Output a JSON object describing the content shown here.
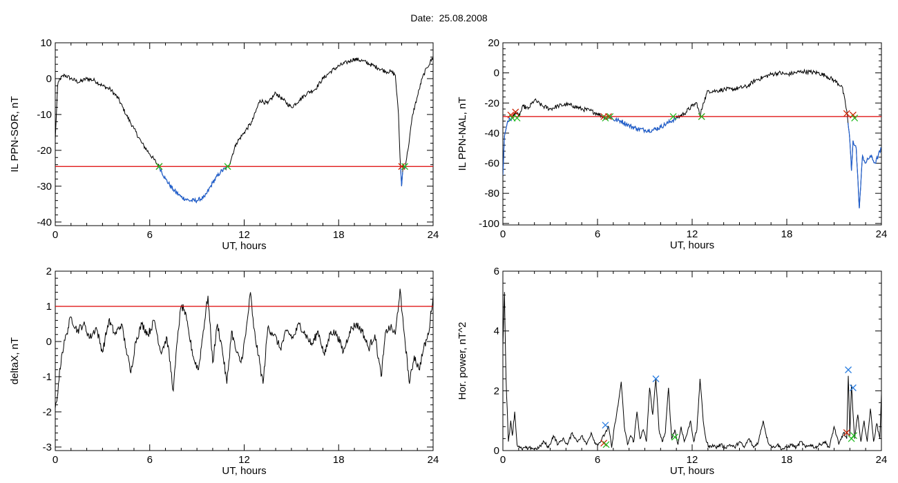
{
  "title": "Date:  25.08.2008",
  "colors": {
    "line": "#000000",
    "threshold": "#dd0000",
    "below": "#1f5fd0",
    "marker_start": "#cc2200",
    "marker_end": "#22bb22",
    "marker_peak": "#2a7de0"
  },
  "chart_data": [
    {
      "type": "line",
      "xlabel": "UT, hours",
      "ylabel": "IL PPN-SOR, nT",
      "xlim": [
        0,
        24
      ],
      "ylim": [
        -41,
        10
      ],
      "xticks": [
        0,
        6,
        12,
        18,
        24
      ],
      "yticks": [
        -40,
        -30,
        -20,
        -10,
        0,
        10
      ],
      "threshold": -24.5,
      "noise": 0.6,
      "x": [
        0,
        0.15,
        0.3,
        0.6,
        1,
        1.5,
        2,
        2.5,
        3,
        3.5,
        4,
        4.5,
        5,
        5.5,
        6,
        6.6,
        7,
        7.5,
        8,
        8.5,
        9,
        9.5,
        10,
        10.5,
        11,
        11.5,
        12,
        12.5,
        13,
        13.5,
        14,
        14.5,
        15,
        15.5,
        16,
        16.5,
        17,
        17.5,
        18,
        18.5,
        19,
        19.5,
        20,
        20.5,
        21,
        21.3,
        21.6,
        21.8,
        21.9,
        22.0,
        22.1,
        22.2,
        22.4,
        22.7,
        23,
        23.3,
        23.6,
        24
      ],
      "y": [
        -17,
        -2,
        0,
        1,
        0,
        -1,
        0,
        -0.5,
        -2,
        -3,
        -5.5,
        -10,
        -14,
        -18,
        -21,
        -24.5,
        -28,
        -31,
        -33,
        -34,
        -34,
        -33,
        -29,
        -26,
        -24.5,
        -18,
        -15,
        -12,
        -6,
        -7,
        -4,
        -6,
        -8,
        -6,
        -4,
        -3,
        0,
        2,
        3.5,
        4.5,
        5.5,
        5,
        4,
        3,
        2,
        2,
        1,
        -10,
        -22,
        -30,
        -24,
        -25,
        -20,
        -10,
        -5,
        0,
        3,
        6
      ],
      "markers": [
        {
          "x": 6.6,
          "y": -24.5,
          "kind": "start"
        },
        {
          "x": 6.6,
          "y": -24.5,
          "kind": "end"
        },
        {
          "x": 10.95,
          "y": -24.5,
          "kind": "end"
        },
        {
          "x": 22.0,
          "y": -24.5,
          "kind": "start"
        },
        {
          "x": 22.2,
          "y": -24.5,
          "kind": "end"
        }
      ]
    },
    {
      "type": "line",
      "xlabel": "UT, hours",
      "ylabel": "IL PPN-NAL, nT",
      "xlim": [
        0,
        24
      ],
      "ylim": [
        -101,
        20
      ],
      "xticks": [
        0,
        6,
        12,
        18,
        24
      ],
      "yticks": [
        -100,
        -80,
        -60,
        -40,
        -20,
        0,
        20
      ],
      "threshold": -29,
      "noise": 1.5,
      "x": [
        0,
        0.1,
        0.3,
        0.6,
        0.8,
        1,
        1.3,
        1.6,
        2,
        2.5,
        3,
        3.5,
        4,
        4.5,
        5,
        5.5,
        6,
        6.5,
        6.8,
        7,
        7.5,
        8,
        8.5,
        9,
        9.5,
        10,
        10.5,
        11,
        11.5,
        12,
        12.3,
        12.5,
        12.7,
        13,
        13.5,
        14,
        14.5,
        15,
        15.5,
        16,
        16.5,
        17,
        17.5,
        18,
        18.5,
        19,
        19.5,
        20,
        20.5,
        21,
        21.5,
        21.8,
        22,
        22.1,
        22.2,
        22.4,
        22.6,
        22.8,
        23,
        23.3,
        23.6,
        24
      ],
      "y": [
        -68,
        -42,
        -32,
        -30,
        -26,
        -29,
        -22,
        -24,
        -18,
        -22,
        -24,
        -22,
        -21,
        -22,
        -24,
        -25,
        -27,
        -30,
        -29,
        -31,
        -32,
        -35,
        -37,
        -38,
        -38,
        -36,
        -33,
        -30,
        -27,
        -22,
        -20,
        -29,
        -20,
        -12,
        -12,
        -11,
        -11,
        -10,
        -9,
        -5,
        -3,
        -1,
        0,
        -1,
        0,
        1,
        0.5,
        0,
        -2,
        -5,
        -9,
        -25,
        -45,
        -65,
        -45,
        -50,
        -90,
        -55,
        -60,
        -55,
        -60,
        -50
      ],
      "markers": [
        {
          "x": 0.5,
          "y": -28,
          "kind": "start"
        },
        {
          "x": 0.6,
          "y": -30,
          "kind": "end"
        },
        {
          "x": 0.8,
          "y": -26,
          "kind": "start"
        },
        {
          "x": 0.9,
          "y": -30,
          "kind": "end"
        },
        {
          "x": 6.4,
          "y": -29,
          "kind": "start"
        },
        {
          "x": 6.5,
          "y": -30,
          "kind": "end"
        },
        {
          "x": 6.7,
          "y": -29,
          "kind": "start"
        },
        {
          "x": 6.8,
          "y": -29,
          "kind": "end"
        },
        {
          "x": 10.8,
          "y": -29,
          "kind": "end"
        },
        {
          "x": 12.6,
          "y": -29,
          "kind": "start"
        },
        {
          "x": 12.6,
          "y": -29,
          "kind": "end"
        },
        {
          "x": 21.8,
          "y": -27,
          "kind": "start"
        },
        {
          "x": 22.2,
          "y": -28,
          "kind": "start"
        },
        {
          "x": 22.3,
          "y": -30,
          "kind": "end"
        }
      ]
    },
    {
      "type": "line",
      "xlabel": "UT, hours",
      "ylabel": "deltaX, nT",
      "xlim": [
        0,
        24
      ],
      "ylim": [
        -3.1,
        2
      ],
      "xticks": [
        0,
        6,
        12,
        18,
        24
      ],
      "yticks": [
        -3,
        -2,
        -1,
        0,
        1,
        2
      ],
      "threshold": 1,
      "noise": 0.12,
      "x": [
        0,
        0.1,
        0.2,
        0.4,
        0.7,
        1.0,
        1.4,
        1.8,
        2.2,
        2.6,
        3.0,
        3.4,
        3.8,
        4.2,
        4.5,
        4.8,
        5.1,
        5.5,
        5.9,
        6.3,
        6.7,
        7.1,
        7.5,
        7.8,
        8.0,
        8.2,
        8.5,
        8.8,
        9.1,
        9.4,
        9.7,
        10.0,
        10.3,
        10.6,
        10.9,
        11.2,
        11.5,
        11.8,
        12.1,
        12.4,
        12.6,
        12.9,
        13.2,
        13.5,
        13.9,
        14.3,
        14.7,
        15.1,
        15.5,
        15.9,
        16.3,
        16.7,
        17.1,
        17.5,
        17.9,
        18.3,
        18.7,
        19.1,
        19.5,
        19.9,
        20.3,
        20.7,
        21.0,
        21.3,
        21.6,
        21.9,
        22.0,
        22.2,
        22.5,
        22.8,
        23.1,
        23.4,
        23.7,
        24
      ],
      "y": [
        -1.9,
        -1.7,
        -1.2,
        -0.4,
        0.2,
        0.7,
        0.3,
        0.5,
        0.1,
        0.4,
        -0.3,
        0.6,
        0.2,
        0.5,
        -0.2,
        -0.9,
        0.0,
        0.5,
        0.2,
        0.6,
        -0.3,
        0.1,
        -1.4,
        0.3,
        1.0,
        0.9,
        0.2,
        -0.5,
        -0.8,
        0.3,
        1.3,
        -0.6,
        0.5,
        -0.2,
        -1.2,
        0.3,
        -0.3,
        -0.6,
        0.2,
        1.4,
        0.4,
        -0.4,
        -1.2,
        0.4,
        0.2,
        -0.2,
        0.3,
        0.1,
        0.5,
        0.2,
        -0.1,
        0.3,
        -0.4,
        0.3,
        0.2,
        -0.3,
        0.3,
        0.5,
        0.3,
        -0.2,
        0.2,
        -1.0,
        0.3,
        0.4,
        0.2,
        1.5,
        0.9,
        0.1,
        -1.2,
        -0.4,
        -0.8,
        -0.2,
        0.2,
        1.3
      ]
    },
    {
      "type": "line",
      "xlabel": "UT, hours",
      "ylabel": "Hor. power, nT^2",
      "xlim": [
        0,
        24
      ],
      "ylim": [
        0,
        6
      ],
      "xticks": [
        0,
        6,
        12,
        18,
        24
      ],
      "yticks": [
        0,
        2,
        4,
        6
      ],
      "noise": 0.06,
      "x": [
        0,
        0.1,
        0.2,
        0.35,
        0.5,
        0.6,
        0.75,
        0.9,
        1.05,
        1.2,
        1.4,
        1.6,
        1.8,
        2.0,
        2.3,
        2.6,
        2.9,
        3.2,
        3.5,
        3.8,
        4.1,
        4.4,
        4.7,
        5.0,
        5.3,
        5.6,
        5.9,
        6.2,
        6.5,
        6.7,
        6.9,
        7.1,
        7.3,
        7.5,
        7.7,
        7.9,
        8.1,
        8.3,
        8.5,
        8.7,
        8.9,
        9.1,
        9.3,
        9.5,
        9.7,
        9.9,
        10.1,
        10.3,
        10.5,
        10.7,
        10.9,
        11.1,
        11.3,
        11.5,
        11.7,
        11.9,
        12.1,
        12.3,
        12.5,
        12.7,
        12.9,
        13.1,
        13.3,
        13.5,
        13.8,
        14.1,
        14.4,
        14.7,
        15.0,
        15.3,
        15.6,
        15.9,
        16.2,
        16.5,
        16.8,
        17.1,
        17.4,
        17.7,
        18.0,
        18.3,
        18.6,
        18.9,
        19.2,
        19.5,
        19.8,
        20.1,
        20.4,
        20.7,
        21.0,
        21.3,
        21.6,
        21.8,
        21.9,
        22.0,
        22.1,
        22.3,
        22.5,
        22.7,
        22.9,
        23.1,
        23.3,
        23.5,
        23.7,
        23.9,
        24
      ],
      "y": [
        3.5,
        5.3,
        2.4,
        0.3,
        1.0,
        0.5,
        1.3,
        0.2,
        0.1,
        0.05,
        0.1,
        0.05,
        0.1,
        0.05,
        0.1,
        0.3,
        0.1,
        0.5,
        0.2,
        0.4,
        0.2,
        0.6,
        0.3,
        0.5,
        0.2,
        0.6,
        0.2,
        0.3,
        0.6,
        0.8,
        0.1,
        0.9,
        1.5,
        2.3,
        0.8,
        0.2,
        0.5,
        0.3,
        1.3,
        0.4,
        0.7,
        0.3,
        2.1,
        1.2,
        2.4,
        0.7,
        0.3,
        0.6,
        2.1,
        0.4,
        0.7,
        0.2,
        0.8,
        0.3,
        0.6,
        1.0,
        0.3,
        0.7,
        2.4,
        1.0,
        0.3,
        0.1,
        0.2,
        0.1,
        0.2,
        0.1,
        0.2,
        0.1,
        0.3,
        0.1,
        0.4,
        0.1,
        0.3,
        1.0,
        0.3,
        0.1,
        0.2,
        0.05,
        0.1,
        0.2,
        0.1,
        0.3,
        0.1,
        0.2,
        0.1,
        0.2,
        0.3,
        0.1,
        0.8,
        0.2,
        0.6,
        0.4,
        2.5,
        0.5,
        2.2,
        0.4,
        1.2,
        0.3,
        1.0,
        0.3,
        1.4,
        0.3,
        0.9,
        0.4,
        1.9
      ],
      "markers": [
        {
          "x": 6.4,
          "y": 0.25,
          "kind": "start"
        },
        {
          "x": 6.55,
          "y": 0.2,
          "kind": "end"
        },
        {
          "x": 6.5,
          "y": 0.85,
          "kind": "peak"
        },
        {
          "x": 9.7,
          "y": 2.4,
          "kind": "peak"
        },
        {
          "x": 10.9,
          "y": 0.45,
          "kind": "end"
        },
        {
          "x": 21.9,
          "y": 2.7,
          "kind": "peak"
        },
        {
          "x": 22.2,
          "y": 2.1,
          "kind": "peak"
        },
        {
          "x": 21.8,
          "y": 0.6,
          "kind": "start"
        },
        {
          "x": 22.1,
          "y": 0.4,
          "kind": "end"
        },
        {
          "x": 22.25,
          "y": 0.5,
          "kind": "end"
        }
      ]
    }
  ]
}
